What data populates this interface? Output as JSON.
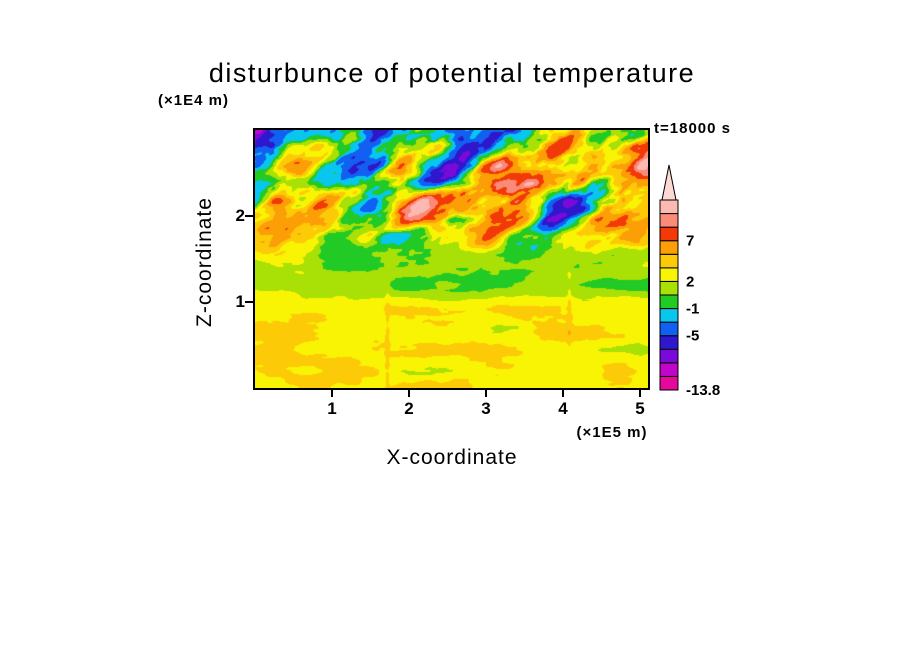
{
  "title": "disturbunce of potential temperature",
  "annotations": {
    "time_label": "t=18000 s",
    "y_unit": "(×1E4 m)",
    "x_unit": "(×1E5 m)"
  },
  "labels": {
    "x_axis": "X-coordinate",
    "z_axis": "Z-coordinate"
  },
  "chart_data": {
    "type": "heatmap",
    "title": "disturbunce of potential temperature",
    "xlabel": "X-coordinate (×1E5 m)",
    "ylabel": "Z-coordinate (×1E4 m)",
    "time": "t=18000 s",
    "x_range": [
      0,
      5.1
    ],
    "z_range": [
      0,
      3.0
    ],
    "x_ticks": [
      "1",
      "2",
      "3",
      "4",
      "5"
    ],
    "z_ticks": [
      "1",
      "2"
    ],
    "grid": false,
    "legend_position": "right-colorbar",
    "levels": [
      -13.8,
      -11,
      -9,
      -7,
      -5,
      -3,
      -1,
      0.5,
      2,
      3.5,
      5,
      7,
      9,
      11,
      13.8
    ],
    "colors_bottom_to_top": [
      "#e6079b",
      "#c006c9",
      "#7a0ad9",
      "#2e17cc",
      "#1160f2",
      "#08c6ee",
      "#22ca26",
      "#a9e005",
      "#f8f403",
      "#fcca07",
      "#fc9e05",
      "#f23a08",
      "#fb8a79",
      "#fcb9b1"
    ],
    "over_color": "#fdd9d3",
    "colorbar_labels": [
      {
        "text": "7",
        "level": 7
      },
      {
        "text": "2",
        "level": 2
      },
      {
        "text": "-1",
        "level": -1
      },
      {
        "text": "-5",
        "level": -5
      },
      {
        "text": "-13.8",
        "level": -13.8
      }
    ],
    "field": {
      "description": "turbulent disturbance field: strong breaking waves aloft (z>1.7), calm green/cyan band near z=1.2, warm orange-yellow layer below z=1",
      "seed": 11,
      "octaves": 4,
      "profile": [
        {
          "z": 0.0,
          "base": 2.9,
          "amp": 1.9
        },
        {
          "z": 0.6,
          "base": 3.3,
          "amp": 2.0
        },
        {
          "z": 0.95,
          "base": 2.6,
          "amp": 1.8
        },
        {
          "z": 1.15,
          "base": 1.3,
          "amp": 1.6
        },
        {
          "z": 1.45,
          "base": 0.7,
          "amp": 2.1
        },
        {
          "z": 1.75,
          "base": 2.0,
          "amp": 8.0
        },
        {
          "z": 2.2,
          "base": 2.3,
          "amp": 12.0
        },
        {
          "z": 3.0,
          "base": 1.7,
          "amp": 11.5
        }
      ],
      "noise_top": {
        "x_scale": 1.6,
        "z_scale": 2.4,
        "shear": 0.9,
        "shear_z0": 1.6,
        "x_off": 71.3,
        "z_off": 53.9
      },
      "noise_bottom": {
        "x_scale": 1.1,
        "z_scale": 4.0,
        "x_off": 31.7,
        "z_off": 11.3
      },
      "blend": {
        "z0": 1.35,
        "z1": 1.75
      },
      "streaks": [
        {
          "x": 1.72,
          "amp": 0.8,
          "width": 0.03,
          "z_max": 1.5
        },
        {
          "x": 4.08,
          "amp": 0.8,
          "width": 0.03,
          "z_max": 1.5
        }
      ]
    }
  }
}
